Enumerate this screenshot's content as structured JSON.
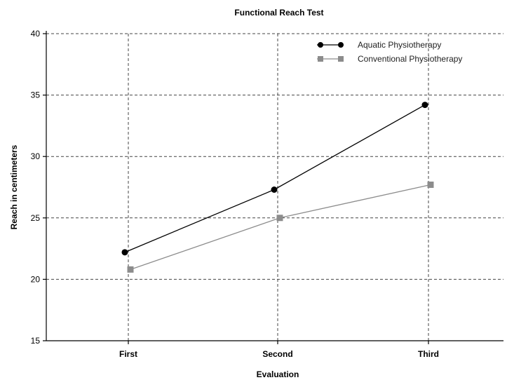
{
  "chart_data": {
    "type": "line",
    "title": "Functional Reach Test",
    "xlabel": "Evaluation",
    "ylabel": "Reach in centimeters",
    "categories": [
      "First",
      "Second",
      "Third"
    ],
    "ylim": [
      15,
      40
    ],
    "yticks": [
      15,
      20,
      25,
      30,
      35,
      40
    ],
    "grid": true,
    "legend_position": "top-right",
    "series": [
      {
        "name": "Aquatic Physiotherapy",
        "values": [
          22.2,
          27.3,
          34.2
        ],
        "color": "#000000",
        "marker": "circle"
      },
      {
        "name": "Conventional Physiotherapy",
        "values": [
          20.8,
          25.0,
          27.7
        ],
        "color": "#8c8c8c",
        "marker": "square"
      }
    ]
  }
}
